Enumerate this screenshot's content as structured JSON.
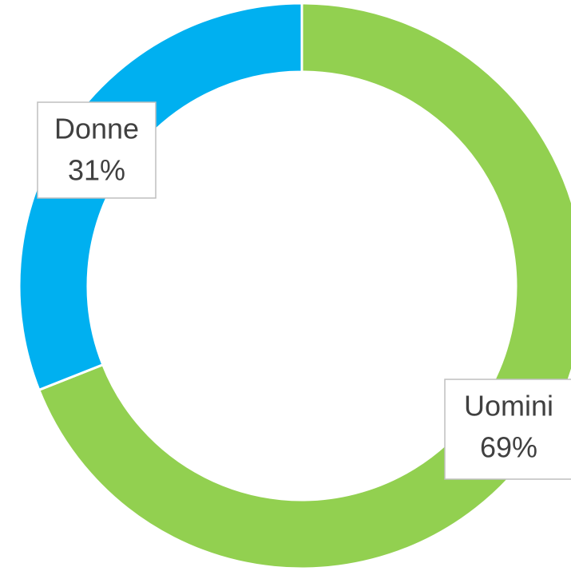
{
  "chart_data": {
    "type": "donut",
    "categories": [
      "Uomini",
      "Donne"
    ],
    "values": [
      69,
      31
    ],
    "value_labels": [
      "69%",
      "31%"
    ],
    "colors": [
      "#92d050",
      "#00b0f0"
    ]
  }
}
